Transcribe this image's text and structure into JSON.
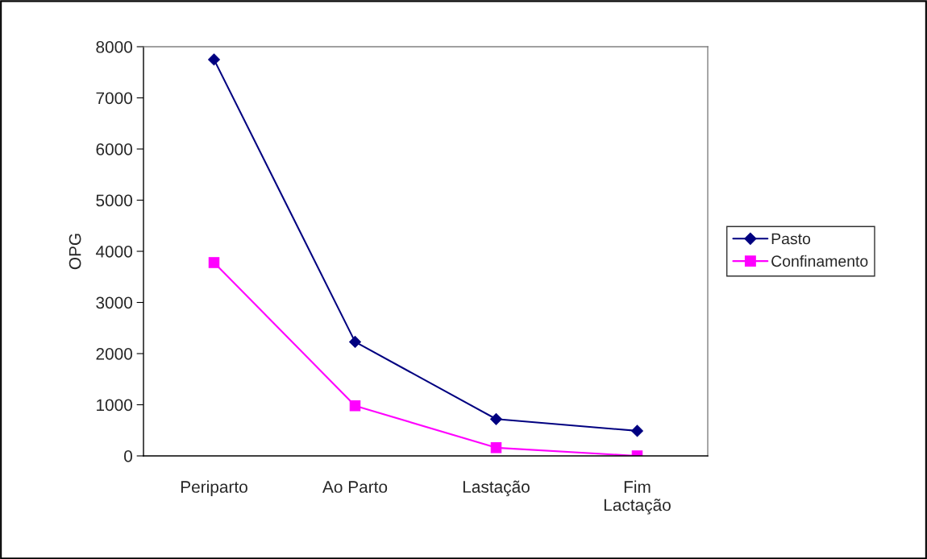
{
  "chart_data": {
    "type": "line",
    "ylabel": "OPG",
    "categories": [
      "Periparto",
      "Ao Parto",
      "Lastação",
      "Fim\nLactação"
    ],
    "series": [
      {
        "name": "Pasto",
        "color": "#000080",
        "marker": "diamond",
        "values": [
          7750,
          2230,
          720,
          490
        ]
      },
      {
        "name": "Confinamento",
        "color": "#ff00ff",
        "marker": "square",
        "values": [
          3780,
          980,
          160,
          0
        ]
      }
    ],
    "ylim": [
      0,
      8000
    ],
    "yticks": [
      0,
      1000,
      2000,
      3000,
      4000,
      5000,
      6000,
      7000,
      8000
    ],
    "grid": false,
    "legend": "right"
  }
}
